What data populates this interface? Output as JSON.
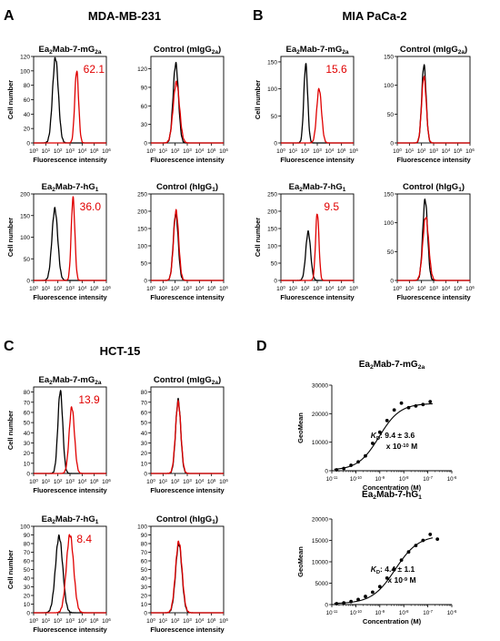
{
  "colors": {
    "sample": "#e00000",
    "control": "#000000",
    "axis": "#000000",
    "fit": "#000000"
  },
  "panels": [
    {
      "letter": "A",
      "cell_line": "MDA-MB-231",
      "rows": [
        {
          "plots": [
            {
              "title_base": "Ea",
              "title_sub1": "2",
              "title_mid": "Mab-7-mG",
              "title_sub2": "2a",
              "title_tail": "",
              "ylim": [
                0,
                120
              ],
              "yticks": [
                0,
                20,
                40,
                60,
                80,
                100,
                120
              ],
              "ylabel": "Cell number",
              "xlabel": "Fluorescence intensity",
              "annotation": "62.1",
              "control": {
                "mu": 1.8,
                "sigma": 0.24,
                "peak": 118
              },
              "sample": {
                "mu": 3.55,
                "sigma": 0.16,
                "peak": 100
              }
            },
            {
              "title_base": "Control (mIgG",
              "title_sub1": "2a",
              "title_mid": ")",
              "title_sub2": "",
              "title_tail": "",
              "ylim": [
                0,
                140
              ],
              "yticks": [
                0,
                30,
                60,
                90,
                120
              ],
              "ylabel": "",
              "xlabel": "Fluorescence intensity",
              "annotation": "",
              "control": {
                "mu": 2.05,
                "sigma": 0.22,
                "peak": 128
              },
              "sample": {
                "mu": 2.1,
                "sigma": 0.26,
                "peak": 98
              }
            }
          ]
        },
        {
          "plots": [
            {
              "title_base": "Ea",
              "title_sub1": "2",
              "title_mid": "Mab-7-hG",
              "title_sub2": "1",
              "title_tail": "",
              "ylim": [
                0,
                200
              ],
              "yticks": [
                0,
                50,
                100,
                150,
                200
              ],
              "ylabel": "Cell number",
              "xlabel": "Fluorescence intensity",
              "annotation": "36.0",
              "control": {
                "mu": 1.75,
                "sigma": 0.24,
                "peak": 165
              },
              "sample": {
                "mu": 3.25,
                "sigma": 0.15,
                "peak": 190
              }
            },
            {
              "title_base": "Control (hIgG",
              "title_sub1": "1",
              "title_mid": ")",
              "title_sub2": "",
              "title_tail": "",
              "ylim": [
                0,
                250
              ],
              "yticks": [
                0,
                50,
                100,
                150,
                200,
                250
              ],
              "ylabel": "",
              "xlabel": "Fluorescence intensity",
              "annotation": "",
              "control": {
                "mu": 2.05,
                "sigma": 0.2,
                "peak": 195
              },
              "sample": {
                "mu": 2.08,
                "sigma": 0.21,
                "peak": 200
              }
            }
          ]
        }
      ]
    },
    {
      "letter": "B",
      "cell_line": "MIA PaCa-2",
      "rows": [
        {
          "plots": [
            {
              "title_base": "Ea",
              "title_sub1": "2",
              "title_mid": "Mab-7-mG",
              "title_sub2": "2a",
              "title_tail": "",
              "ylim": [
                0,
                160
              ],
              "yticks": [
                0,
                50,
                100,
                150
              ],
              "ylabel": "Cell number",
              "xlabel": "Fluorescence intensity",
              "annotation": "15.6",
              "control": {
                "mu": 2.05,
                "sigma": 0.16,
                "peak": 145
              },
              "sample": {
                "mu": 3.15,
                "sigma": 0.2,
                "peak": 100
              }
            },
            {
              "title_base": "Control (mIgG",
              "title_sub1": "2a",
              "title_mid": ")",
              "title_sub2": "",
              "title_tail": "",
              "ylim": [
                0,
                150
              ],
              "yticks": [
                0,
                50,
                100,
                150
              ],
              "ylabel": "",
              "xlabel": "Fluorescence intensity",
              "annotation": "",
              "control": {
                "mu": 2.2,
                "sigma": 0.18,
                "peak": 135
              },
              "sample": {
                "mu": 2.2,
                "sigma": 0.19,
                "peak": 115
              }
            }
          ]
        },
        {
          "plots": [
            {
              "title_base": "Ea",
              "title_sub1": "2",
              "title_mid": "Mab-7-hG",
              "title_sub2": "1",
              "title_tail": "",
              "ylim": [
                0,
                250
              ],
              "yticks": [
                0,
                50,
                100,
                150,
                200,
                250
              ],
              "ylabel": "Cell number",
              "xlabel": "Fluorescence intensity",
              "annotation": "9.5",
              "control": {
                "mu": 2.25,
                "sigma": 0.2,
                "peak": 140
              },
              "sample": {
                "mu": 3.0,
                "sigma": 0.14,
                "peak": 195
              }
            },
            {
              "title_base": "Control (hIgG",
              "title_sub1": "1",
              "title_mid": ")",
              "title_sub2": "",
              "title_tail": "",
              "ylim": [
                0,
                150
              ],
              "yticks": [
                0,
                50,
                100,
                150
              ],
              "ylabel": "",
              "xlabel": "Fluorescence intensity",
              "annotation": "",
              "control": {
                "mu": 2.3,
                "sigma": 0.2,
                "peak": 140
              },
              "sample": {
                "mu": 2.35,
                "sigma": 0.24,
                "peak": 110
              }
            }
          ]
        }
      ]
    },
    {
      "letter": "C",
      "cell_line": "HCT-15",
      "rows": [
        {
          "plots": [
            {
              "title_base": "Ea",
              "title_sub1": "2",
              "title_mid": "Mab-7-mG",
              "title_sub2": "2a",
              "title_tail": "",
              "ylim": [
                0,
                85
              ],
              "yticks": [
                0,
                10,
                20,
                30,
                40,
                50,
                60,
                70,
                80
              ],
              "ylabel": "Cell number",
              "xlabel": "Fluorescence intensity",
              "annotation": "13.9",
              "control": {
                "mu": 2.2,
                "sigma": 0.2,
                "peak": 81
              },
              "sample": {
                "mu": 3.15,
                "sigma": 0.22,
                "peak": 65
              }
            },
            {
              "title_base": "Control (mIgG",
              "title_sub1": "2a",
              "title_mid": ")",
              "title_sub2": "",
              "title_tail": "",
              "ylim": [
                0,
                85
              ],
              "yticks": [
                0,
                10,
                20,
                30,
                40,
                50,
                60,
                70,
                80
              ],
              "ylabel": "",
              "xlabel": "Fluorescence intensity",
              "annotation": "",
              "control": {
                "mu": 2.25,
                "sigma": 0.21,
                "peak": 72
              },
              "sample": {
                "mu": 2.25,
                "sigma": 0.22,
                "peak": 70
              }
            }
          ]
        },
        {
          "plots": [
            {
              "title_base": "Ea",
              "title_sub1": "2",
              "title_mid": "Mab-7-hG",
              "title_sub2": "1",
              "title_tail": "",
              "ylim": [
                0,
                100
              ],
              "yticks": [
                0,
                10,
                20,
                30,
                40,
                50,
                60,
                70,
                80,
                90,
                100
              ],
              "ylabel": "Cell number",
              "xlabel": "Fluorescence intensity",
              "annotation": "8.4",
              "control": {
                "mu": 2.1,
                "sigma": 0.3,
                "peak": 88
              },
              "sample": {
                "mu": 3.0,
                "sigma": 0.3,
                "peak": 90
              }
            },
            {
              "title_base": "Control (hIgG",
              "title_sub1": "1",
              "title_mid": ")",
              "title_sub2": "",
              "title_tail": "",
              "ylim": [
                0,
                100
              ],
              "yticks": [
                0,
                10,
                20,
                30,
                40,
                50,
                60,
                70,
                80,
                90,
                100
              ],
              "ylabel": "",
              "xlabel": "Fluorescence intensity",
              "annotation": "",
              "control": {
                "mu": 2.3,
                "sigma": 0.26,
                "peak": 80
              },
              "sample": {
                "mu": 2.3,
                "sigma": 0.27,
                "peak": 82
              }
            }
          ]
        }
      ]
    }
  ],
  "panel_d": {
    "letter": "D",
    "plots": [
      {
        "title_base": "Ea",
        "title_sub1": "2",
        "title_mid": "Mab-7-mG",
        "title_sub2": "2a",
        "ylabel": "GeoMean",
        "xlabel": "Concentration (M)",
        "ylim": [
          0,
          30000
        ],
        "yticks": [
          0,
          10000,
          20000,
          30000
        ],
        "xtick_exps": [
          -11,
          -10,
          -9,
          -8,
          -7,
          -6
        ],
        "kd_label": "K",
        "kd_sub": "D",
        "kd_value": ": 9.4 ± 3.6",
        "kd_unit": "x 10",
        "kd_exp": "-10",
        "kd_unit_tail": " M",
        "fit": {
          "bottom": 200,
          "top": 23600,
          "log_ec50": -9.03,
          "hill": 1.0
        },
        "points": [
          {
            "log_conc": -10.8,
            "value": 300
          },
          {
            "log_conc": -10.5,
            "value": 800
          },
          {
            "log_conc": -10.2,
            "value": 1900
          },
          {
            "log_conc": -9.9,
            "value": 3100
          },
          {
            "log_conc": -9.6,
            "value": 5200
          },
          {
            "log_conc": -9.3,
            "value": 9600
          },
          {
            "log_conc": -9.0,
            "value": 13500
          },
          {
            "log_conc": -8.7,
            "value": 17600
          },
          {
            "log_conc": -8.4,
            "value": 21300
          },
          {
            "log_conc": -8.1,
            "value": 23700
          },
          {
            "log_conc": -7.8,
            "value": 22100
          },
          {
            "log_conc": -7.5,
            "value": 22700
          },
          {
            "log_conc": -7.2,
            "value": 23200
          },
          {
            "log_conc": -6.9,
            "value": 24200
          }
        ]
      },
      {
        "title_base": "Ea",
        "title_sub1": "2",
        "title_mid": "Mab-7-hG",
        "title_sub2": "1",
        "ylabel": "GeoMean",
        "xlabel": "Concentration (M)",
        "ylim": [
          0,
          20000
        ],
        "yticks": [
          0,
          5000,
          10000,
          15000,
          20000
        ],
        "xtick_exps": [
          -11,
          -10,
          -9,
          -8,
          -7,
          -6
        ],
        "kd_label": "K",
        "kd_sub": "D",
        "kd_value": ": 4.4 ± 1.1",
        "kd_unit": "x 10",
        "kd_exp": "-9",
        "kd_unit_tail": " M",
        "fit": {
          "bottom": 200,
          "top": 16200,
          "log_ec50": -8.36,
          "hill": 0.9
        },
        "points": [
          {
            "log_conc": -10.8,
            "value": 200
          },
          {
            "log_conc": -10.5,
            "value": 400
          },
          {
            "log_conc": -10.2,
            "value": 700
          },
          {
            "log_conc": -9.9,
            "value": 1200
          },
          {
            "log_conc": -9.6,
            "value": 1900
          },
          {
            "log_conc": -9.3,
            "value": 2900
          },
          {
            "log_conc": -9.0,
            "value": 4200
          },
          {
            "log_conc": -8.7,
            "value": 6200
          },
          {
            "log_conc": -8.4,
            "value": 8200
          },
          {
            "log_conc": -8.1,
            "value": 10400
          },
          {
            "log_conc": -7.8,
            "value": 12300
          },
          {
            "log_conc": -7.5,
            "value": 13800
          },
          {
            "log_conc": -7.2,
            "value": 15000
          },
          {
            "log_conc": -6.9,
            "value": 16400
          },
          {
            "log_conc": -6.6,
            "value": 15300
          }
        ]
      }
    ]
  },
  "chart_data": [
    {
      "type": "line",
      "panel": "A",
      "title": "Ea2Mab-7-mG2a",
      "ylabel": "Cell number",
      "xlabel": "Fluorescence intensity",
      "xscale": "log",
      "xlim": [
        1,
        1000000
      ],
      "ylim": [
        0,
        120
      ],
      "annotation": "62.1"
    },
    {
      "type": "line",
      "panel": "A",
      "title": "Control (mIgG2a)",
      "xlabel": "Fluorescence intensity",
      "xscale": "log",
      "xlim": [
        1,
        1000000
      ],
      "ylim": [
        0,
        140
      ]
    },
    {
      "type": "line",
      "panel": "A",
      "title": "Ea2Mab-7-hG1",
      "ylabel": "Cell number",
      "xlabel": "Fluorescence intensity",
      "xscale": "log",
      "xlim": [
        1,
        1000000
      ],
      "ylim": [
        0,
        200
      ],
      "annotation": "36.0"
    },
    {
      "type": "line",
      "panel": "A",
      "title": "Control (hIgG1)",
      "xlabel": "Fluorescence intensity",
      "xscale": "log",
      "xlim": [
        1,
        1000000
      ],
      "ylim": [
        0,
        250
      ]
    },
    {
      "type": "line",
      "panel": "B",
      "title": "Ea2Mab-7-mG2a",
      "ylabel": "Cell number",
      "xlabel": "Fluorescence intensity",
      "xscale": "log",
      "xlim": [
        1,
        1000000
      ],
      "ylim": [
        0,
        160
      ],
      "annotation": "15.6"
    },
    {
      "type": "line",
      "panel": "B",
      "title": "Control (mIgG2a)",
      "xlabel": "Fluorescence intensity",
      "xscale": "log",
      "xlim": [
        1,
        1000000
      ],
      "ylim": [
        0,
        150
      ]
    },
    {
      "type": "line",
      "panel": "B",
      "title": "Ea2Mab-7-hG1",
      "ylabel": "Cell number",
      "xlabel": "Fluorescence intensity",
      "xscale": "log",
      "xlim": [
        1,
        1000000
      ],
      "ylim": [
        0,
        250
      ],
      "annotation": "9.5"
    },
    {
      "type": "line",
      "panel": "B",
      "title": "Control (hIgG1)",
      "xlabel": "Fluorescence intensity",
      "xscale": "log",
      "xlim": [
        1,
        1000000
      ],
      "ylim": [
        0,
        150
      ]
    },
    {
      "type": "line",
      "panel": "C",
      "title": "Ea2Mab-7-mG2a",
      "ylabel": "Cell number",
      "xlabel": "Fluorescence intensity",
      "xscale": "log",
      "xlim": [
        1,
        1000000
      ],
      "ylim": [
        0,
        85
      ],
      "annotation": "13.9"
    },
    {
      "type": "line",
      "panel": "C",
      "title": "Control (mIgG2a)",
      "xlabel": "Fluorescence intensity",
      "xscale": "log",
      "xlim": [
        1,
        1000000
      ],
      "ylim": [
        0,
        85
      ]
    },
    {
      "type": "line",
      "panel": "C",
      "title": "Ea2Mab-7-hG1",
      "ylabel": "Cell number",
      "xlabel": "Fluorescence intensity",
      "xscale": "log",
      "xlim": [
        1,
        1000000
      ],
      "ylim": [
        0,
        100
      ],
      "annotation": "8.4"
    },
    {
      "type": "line",
      "panel": "C",
      "title": "Control (hIgG1)",
      "xlabel": "Fluorescence intensity",
      "xscale": "log",
      "xlim": [
        1,
        1000000
      ],
      "ylim": [
        0,
        100
      ]
    },
    {
      "type": "scatter",
      "panel": "D",
      "title": "Ea2Mab-7-mG2a",
      "ylabel": "GeoMean",
      "xlabel": "Concentration (M)",
      "xscale": "log",
      "xlim": [
        1e-11,
        1e-06
      ],
      "ylim": [
        0,
        30000
      ],
      "annotation": "KD: 9.4 ± 3.6 x 10-10 M"
    },
    {
      "type": "scatter",
      "panel": "D",
      "title": "Ea2Mab-7-hG1",
      "ylabel": "GeoMean",
      "xlabel": "Concentration (M)",
      "xscale": "log",
      "xlim": [
        1e-11,
        1e-06
      ],
      "ylim": [
        0,
        20000
      ],
      "annotation": "KD: 4.4 ± 1.1 x 10-9 M"
    }
  ]
}
